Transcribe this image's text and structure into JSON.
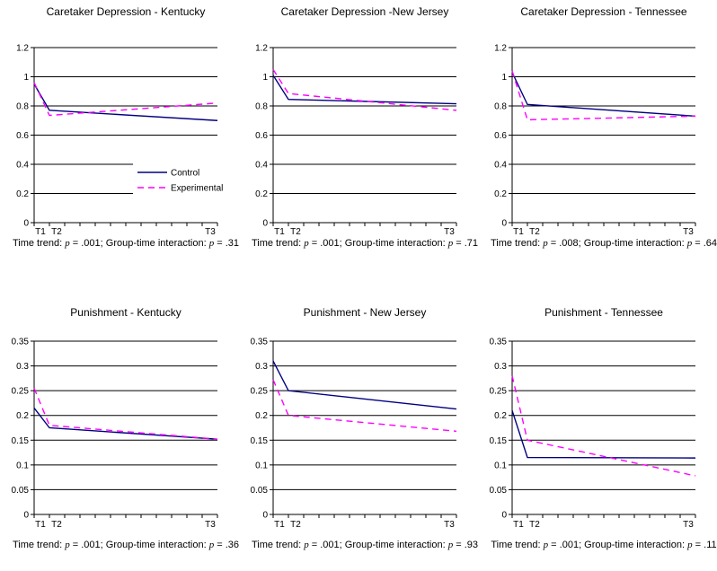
{
  "page": {
    "background": "#ffffff",
    "layout": "2x3 grid of small-multiple line charts"
  },
  "colors": {
    "control": "#000080",
    "experimental": "#FF00FF",
    "axis": "#000000",
    "gridline": "#000000",
    "text": "#000000",
    "legend_background": "#FFFFFF"
  },
  "series_styles": {
    "Control": {
      "color": "#000080",
      "dasharray": ""
    },
    "Experimental": {
      "color": "#FF00FF",
      "dasharray": "7 5"
    }
  },
  "legend": {
    "items": [
      {
        "label": "Control",
        "style": "solid-navy-line"
      },
      {
        "label": "Experimental",
        "style": "dashed-magenta-line"
      }
    ],
    "position": "inside-right-middle-of-first-chart"
  },
  "stats_labels": {
    "time_trend": "Time trend:",
    "interaction": "Group-time interaction:",
    "p_symbol": "p",
    "equals": "="
  },
  "chart_data": [
    {
      "type": "line",
      "title": "Caretaker Depression - Kentucky",
      "x_tick_labels": [
        "T1",
        "T2",
        "T3"
      ],
      "x_tick_positions": [
        0,
        1,
        12
      ],
      "x_range": [
        0,
        12
      ],
      "x_minor_tick_every": 1,
      "ylim": [
        0,
        1.2
      ],
      "ytick_step": 0.2,
      "grid": true,
      "show_legend": true,
      "series": [
        {
          "name": "Control",
          "values": [
            0.95,
            0.77,
            0.7
          ]
        },
        {
          "name": "Experimental",
          "values": [
            0.96,
            0.735,
            0.82
          ]
        }
      ],
      "stats": {
        "time_trend_p": ".001",
        "interaction_p": ".31"
      }
    },
    {
      "type": "line",
      "title": "Caretaker Depression -New Jersey",
      "x_tick_labels": [
        "T1",
        "T2",
        "T3"
      ],
      "x_tick_positions": [
        0,
        1,
        12
      ],
      "x_range": [
        0,
        12
      ],
      "x_minor_tick_every": 1,
      "ylim": [
        0,
        1.2
      ],
      "ytick_step": 0.2,
      "grid": true,
      "show_legend": false,
      "series": [
        {
          "name": "Control",
          "values": [
            1.01,
            0.845,
            0.815
          ]
        },
        {
          "name": "Experimental",
          "values": [
            1.05,
            0.885,
            0.77
          ]
        }
      ],
      "stats": {
        "time_trend_p": ".001",
        "interaction_p": ".71"
      }
    },
    {
      "type": "line",
      "title": "Caretaker Depression - Tennessee",
      "x_tick_labels": [
        "T1",
        "T2",
        "T3"
      ],
      "x_tick_positions": [
        0,
        1,
        12
      ],
      "x_range": [
        0,
        12
      ],
      "x_minor_tick_every": 1,
      "ylim": [
        0,
        1.2
      ],
      "ytick_step": 0.2,
      "grid": true,
      "show_legend": false,
      "series": [
        {
          "name": "Control",
          "values": [
            1.03,
            0.81,
            0.73
          ]
        },
        {
          "name": "Experimental",
          "values": [
            1.04,
            0.705,
            0.73
          ]
        }
      ],
      "stats": {
        "time_trend_p": ".008",
        "interaction_p": ".64"
      }
    },
    {
      "type": "line",
      "title": "Punishment - Kentucky",
      "x_tick_labels": [
        "T1",
        "T2",
        "T3"
      ],
      "x_tick_positions": [
        0,
        1,
        12
      ],
      "x_range": [
        0,
        12
      ],
      "x_minor_tick_every": 1,
      "ylim": [
        0,
        0.35
      ],
      "ytick_step": 0.05,
      "grid": true,
      "show_legend": false,
      "series": [
        {
          "name": "Control",
          "values": [
            0.215,
            0.175,
            0.152
          ]
        },
        {
          "name": "Experimental",
          "values": [
            0.255,
            0.18,
            0.152
          ]
        }
      ],
      "stats": {
        "time_trend_p": ".001",
        "interaction_p": ".36"
      }
    },
    {
      "type": "line",
      "title": "Punishment - New Jersey",
      "x_tick_labels": [
        "T1",
        "T2",
        "T3"
      ],
      "x_tick_positions": [
        0,
        1,
        12
      ],
      "x_range": [
        0,
        12
      ],
      "x_minor_tick_every": 1,
      "ylim": [
        0,
        0.35
      ],
      "ytick_step": 0.05,
      "grid": true,
      "show_legend": false,
      "series": [
        {
          "name": "Control",
          "values": [
            0.31,
            0.25,
            0.213
          ]
        },
        {
          "name": "Experimental",
          "values": [
            0.272,
            0.2,
            0.168
          ]
        }
      ],
      "stats": {
        "time_trend_p": ".001",
        "interaction_p": ".93"
      }
    },
    {
      "type": "line",
      "title": "Punishment - Tennessee",
      "x_tick_labels": [
        "T1",
        "T2",
        "T3"
      ],
      "x_tick_positions": [
        0,
        1,
        12
      ],
      "x_range": [
        0,
        12
      ],
      "x_minor_tick_every": 1,
      "ylim": [
        0,
        0.35
      ],
      "ytick_step": 0.05,
      "grid": true,
      "show_legend": false,
      "series": [
        {
          "name": "Control",
          "values": [
            0.21,
            0.115,
            0.114
          ]
        },
        {
          "name": "Experimental",
          "values": [
            0.28,
            0.15,
            0.078
          ]
        }
      ],
      "stats": {
        "time_trend_p": ".001",
        "interaction_p": ".11"
      }
    }
  ]
}
